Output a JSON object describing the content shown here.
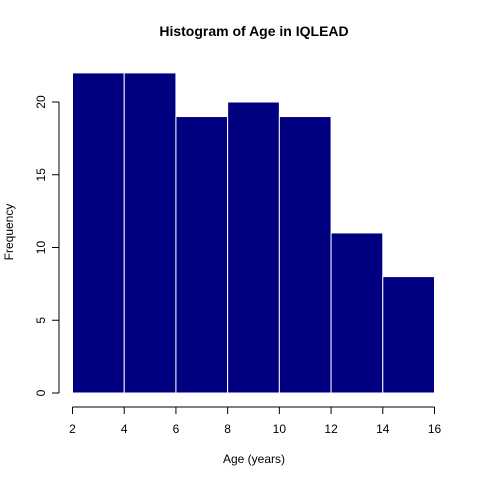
{
  "chart_data": {
    "type": "bar",
    "title": "Histogram of Age in IQLEAD",
    "xlabel": "Age (years)",
    "ylabel": "Frequency",
    "bins": [
      {
        "from": 2,
        "to": 4,
        "count": 22
      },
      {
        "from": 4,
        "to": 6,
        "count": 22
      },
      {
        "from": 6,
        "to": 8,
        "count": 19
      },
      {
        "from": 8,
        "to": 10,
        "count": 20
      },
      {
        "from": 10,
        "to": 12,
        "count": 19
      },
      {
        "from": 12,
        "to": 14,
        "count": 11
      },
      {
        "from": 14,
        "to": 16,
        "count": 8
      }
    ],
    "xlim": [
      2,
      16
    ],
    "ylim": [
      0,
      22
    ],
    "x_ticks": [
      "2",
      "4",
      "6",
      "8",
      "10",
      "12",
      "14",
      "16"
    ],
    "y_ticks": [
      "0",
      "5",
      "10",
      "15",
      "20"
    ],
    "bar_color": "#000080",
    "grid": false,
    "legend": "none"
  }
}
